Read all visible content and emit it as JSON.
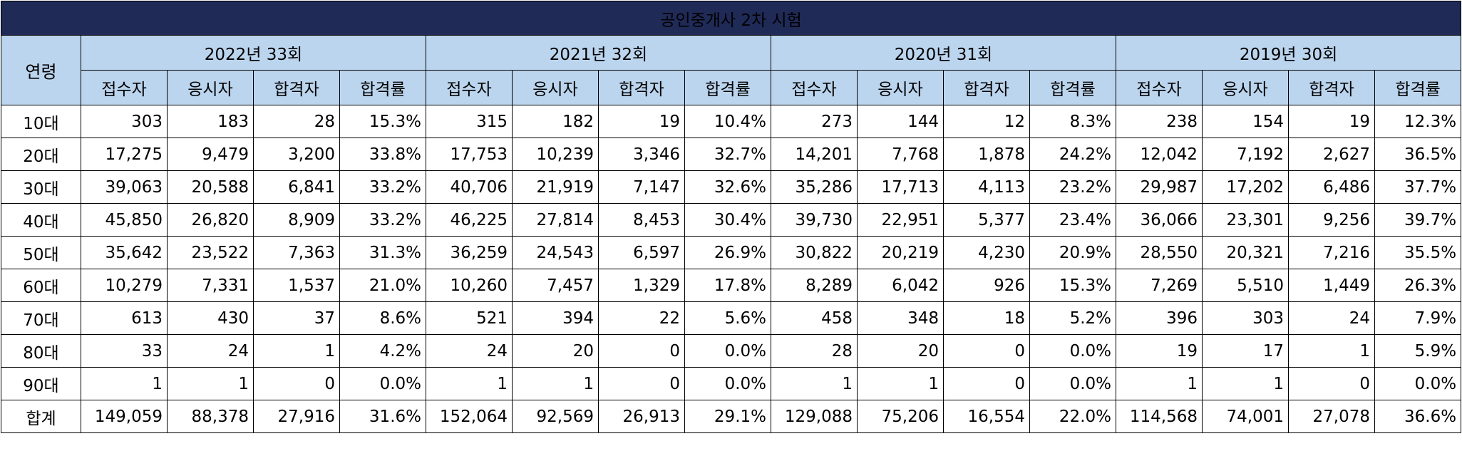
{
  "title": "공인중개사 2차 시험",
  "age_header": "연령",
  "sub_headers": [
    "접수자",
    "응시자",
    "합격자",
    "합격률"
  ],
  "years": [
    {
      "label": "2022년 33회"
    },
    {
      "label": "2021년 32회"
    },
    {
      "label": "2020년 31회"
    },
    {
      "label": "2019년 30회"
    }
  ],
  "rows": [
    {
      "age": "10대",
      "cells": [
        "303",
        "183",
        "28",
        "15.3%",
        "315",
        "182",
        "19",
        "10.4%",
        "273",
        "144",
        "12",
        "8.3%",
        "238",
        "154",
        "19",
        "12.3%"
      ]
    },
    {
      "age": "20대",
      "cells": [
        "17,275",
        "9,479",
        "3,200",
        "33.8%",
        "17,753",
        "10,239",
        "3,346",
        "32.7%",
        "14,201",
        "7,768",
        "1,878",
        "24.2%",
        "12,042",
        "7,192",
        "2,627",
        "36.5%"
      ]
    },
    {
      "age": "30대",
      "cells": [
        "39,063",
        "20,588",
        "6,841",
        "33.2%",
        "40,706",
        "21,919",
        "7,147",
        "32.6%",
        "35,286",
        "17,713",
        "4,113",
        "23.2%",
        "29,987",
        "17,202",
        "6,486",
        "37.7%"
      ]
    },
    {
      "age": "40대",
      "cells": [
        "45,850",
        "26,820",
        "8,909",
        "33.2%",
        "46,225",
        "27,814",
        "8,453",
        "30.4%",
        "39,730",
        "22,951",
        "5,377",
        "23.4%",
        "36,066",
        "23,301",
        "9,256",
        "39.7%"
      ]
    },
    {
      "age": "50대",
      "cells": [
        "35,642",
        "23,522",
        "7,363",
        "31.3%",
        "36,259",
        "24,543",
        "6,597",
        "26.9%",
        "30,822",
        "20,219",
        "4,230",
        "20.9%",
        "28,550",
        "20,321",
        "7,216",
        "35.5%"
      ]
    },
    {
      "age": "60대",
      "cells": [
        "10,279",
        "7,331",
        "1,537",
        "21.0%",
        "10,260",
        "7,457",
        "1,329",
        "17.8%",
        "8,289",
        "6,042",
        "926",
        "15.3%",
        "7,269",
        "5,510",
        "1,449",
        "26.3%"
      ]
    },
    {
      "age": "70대",
      "cells": [
        "613",
        "430",
        "37",
        "8.6%",
        "521",
        "394",
        "22",
        "5.6%",
        "458",
        "348",
        "18",
        "5.2%",
        "396",
        "303",
        "24",
        "7.9%"
      ]
    },
    {
      "age": "80대",
      "cells": [
        "33",
        "24",
        "1",
        "4.2%",
        "24",
        "20",
        "0",
        "0.0%",
        "28",
        "20",
        "0",
        "0.0%",
        "19",
        "17",
        "1",
        "5.9%"
      ]
    },
    {
      "age": "90대",
      "cells": [
        "1",
        "1",
        "0",
        "0.0%",
        "1",
        "1",
        "0",
        "0.0%",
        "1",
        "1",
        "0",
        "0.0%",
        "1",
        "1",
        "0",
        "0.0%"
      ]
    },
    {
      "age": "합계",
      "cells": [
        "149,059",
        "88,378",
        "27,916",
        "31.6%",
        "152,064",
        "92,569",
        "26,913",
        "29.1%",
        "129,088",
        "75,206",
        "16,554",
        "22.0%",
        "114,568",
        "74,001",
        "27,078",
        "36.6%"
      ]
    }
  ],
  "colors": {
    "title_bg": "#1f2a57",
    "header_bg": "#bcd5ee",
    "border": "#000000"
  }
}
